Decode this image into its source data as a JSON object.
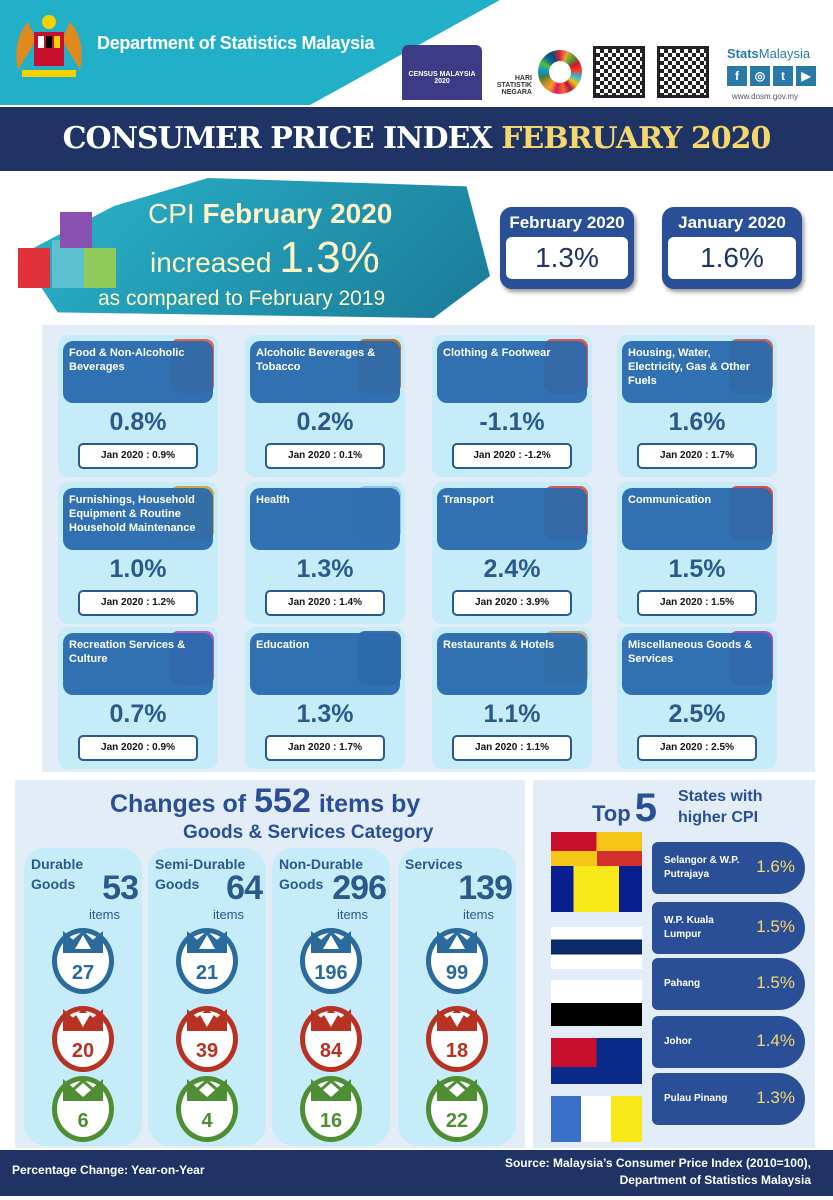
{
  "header": {
    "department": "Department of Statistics Malaysia",
    "census_logo": "CENSUS MALAYSIA 2020",
    "hari_logo": "HARI STATISTIK NEGARA",
    "brand_a": "Stats",
    "brand_b": "Malaysia",
    "social": [
      "f",
      "◎",
      "t",
      "▶"
    ],
    "url": "www.dosm.gov.my"
  },
  "title": {
    "white": "CONSUMER PRICE INDEX",
    "yellow": "FEBRUARY 2020"
  },
  "headline": {
    "cpi": "CPI",
    "month": "February 2020",
    "increased": "increased",
    "value": "1.3%",
    "compare": "as compared to February 2019"
  },
  "months": [
    {
      "label": "February 2020",
      "value": "1.3%"
    },
    {
      "label": "January 2020",
      "value": "1.6%"
    }
  ],
  "categories": [
    {
      "label": "Food & Non-Alcoholic Beverages",
      "value": "0.8%",
      "jan": "Jan 2020 : 0.9%",
      "color": "#e5543b"
    },
    {
      "label": "Alcoholic Beverages & Tobacco",
      "value": "0.2%",
      "jan": "Jan 2020 : 0.1%",
      "color": "#b5651d"
    },
    {
      "label": "Clothing & Footwear",
      "value": "-1.1%",
      "jan": "Jan 2020 : -1.2%",
      "color": "#e0443b"
    },
    {
      "label": "Housing, Water, Electricity, Gas & Other Fuels",
      "value": "1.6%",
      "jan": "Jan 2020 : 1.7%",
      "color": "#c0564a"
    },
    {
      "label": "Furnishings, Household Equipment & Routine Household Maintenance",
      "value": "1.0%",
      "jan": "Jan 2020 : 1.2%",
      "color": "#d4a230"
    },
    {
      "label": "Health",
      "value": "1.3%",
      "jan": "Jan 2020 : 1.4%",
      "color": "#8fbfe0"
    },
    {
      "label": "Transport",
      "value": "2.4%",
      "jan": "Jan 2020 : 3.9%",
      "color": "#e04a3a"
    },
    {
      "label": "Communication",
      "value": "1.5%",
      "jan": "Jan 2020 : 1.5%",
      "color": "#d83a3a"
    },
    {
      "label": "Recreation Services & Culture",
      "value": "0.7%",
      "jan": "Jan 2020 : 0.9%",
      "color": "#b04ab0"
    },
    {
      "label": "Education",
      "value": "1.3%",
      "jan": "Jan 2020 : 1.7%",
      "color": "#3a5a9a"
    },
    {
      "label": "Restaurants & Hotels",
      "value": "1.1%",
      "jan": "Jan 2020 : 1.1%",
      "color": "#c9a070"
    },
    {
      "label": "Miscellaneous Goods & Services",
      "value": "2.5%",
      "jan": "Jan 2020 : 2.5%",
      "color": "#9a3ab0"
    }
  ],
  "items": {
    "title_a": "Changes of",
    "total": "552",
    "title_b": "items by",
    "subtitle": "Goods & Services Category",
    "unit": "items",
    "groups": [
      {
        "name1": "Durable",
        "name2": "Goods",
        "total": "53",
        "up": "27",
        "down": "20",
        "same": "6"
      },
      {
        "name1": "Semi-Durable",
        "name2": "Goods",
        "total": "64",
        "up": "21",
        "down": "39",
        "same": "4"
      },
      {
        "name1": "Non-Durable",
        "name2": "Goods",
        "total": "296",
        "up": "196",
        "down": "84",
        "same": "16"
      },
      {
        "name1": "Services",
        "name2": "",
        "total": "139",
        "up": "99",
        "down": "18",
        "same": "22"
      }
    ]
  },
  "states": {
    "top": "Top",
    "five": "5",
    "sub1": "States with",
    "sub2": "higher CPI",
    "list": [
      {
        "name": "Selangor & W.P. Putrajaya",
        "value": "1.6%"
      },
      {
        "name": "W.P. Kuala Lumpur",
        "value": "1.5%"
      },
      {
        "name": "Pahang",
        "value": "1.5%"
      },
      {
        "name": "Johor",
        "value": "1.4%"
      },
      {
        "name": "Pulau Pinang",
        "value": "1.3%"
      }
    ]
  },
  "footer": {
    "left": "Percentage Change: Year-on-Year",
    "right1": "Source: Malaysia’s Consumer Price Index (2010=100),",
    "right2": "Department of Statistics Malaysia"
  }
}
